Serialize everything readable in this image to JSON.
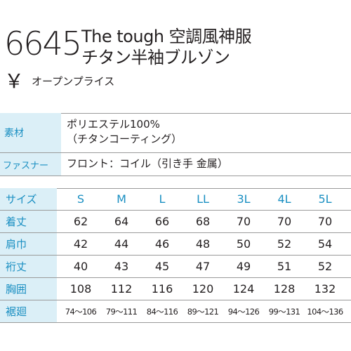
{
  "product": {
    "code": "6645",
    "title_line1": "The tough 空調風神服",
    "title_line2": "チタン半袖ブルゾン",
    "yen_symbol": "￥",
    "price": "オープンプライス"
  },
  "info": [
    {
      "label": "素材",
      "value_lines": [
        "ポリエステル100%",
        "（チタンコーティング）"
      ]
    },
    {
      "label": "ファスナー",
      "value_lines": [
        "フロント：コイル（引き手 金属）"
      ]
    }
  ],
  "size_table": {
    "header_label": "サイズ",
    "sizes": [
      "S",
      "M",
      "L",
      "LL",
      "3L",
      "4L",
      "5L"
    ],
    "rows": [
      {
        "label": "着丈",
        "values": [
          "62",
          "64",
          "66",
          "68",
          "70",
          "70",
          "70"
        ]
      },
      {
        "label": "肩巾",
        "values": [
          "42",
          "44",
          "46",
          "48",
          "50",
          "52",
          "54"
        ]
      },
      {
        "label": "裄丈",
        "values": [
          "40",
          "43",
          "45",
          "47",
          "49",
          "51",
          "52"
        ]
      },
      {
        "label": "胸囲",
        "values": [
          "108",
          "112",
          "116",
          "120",
          "124",
          "128",
          "132"
        ]
      },
      {
        "label": "裾廻",
        "values": [
          "74〜106",
          "79〜111",
          "84〜116",
          "89〜121",
          "94〜126",
          "99〜131",
          "104〜136"
        ]
      }
    ]
  },
  "colors": {
    "accent": "#1a8fc2",
    "label_bg": "#dbeff7",
    "rule": "#9a9a9a",
    "text": "#231f20"
  }
}
